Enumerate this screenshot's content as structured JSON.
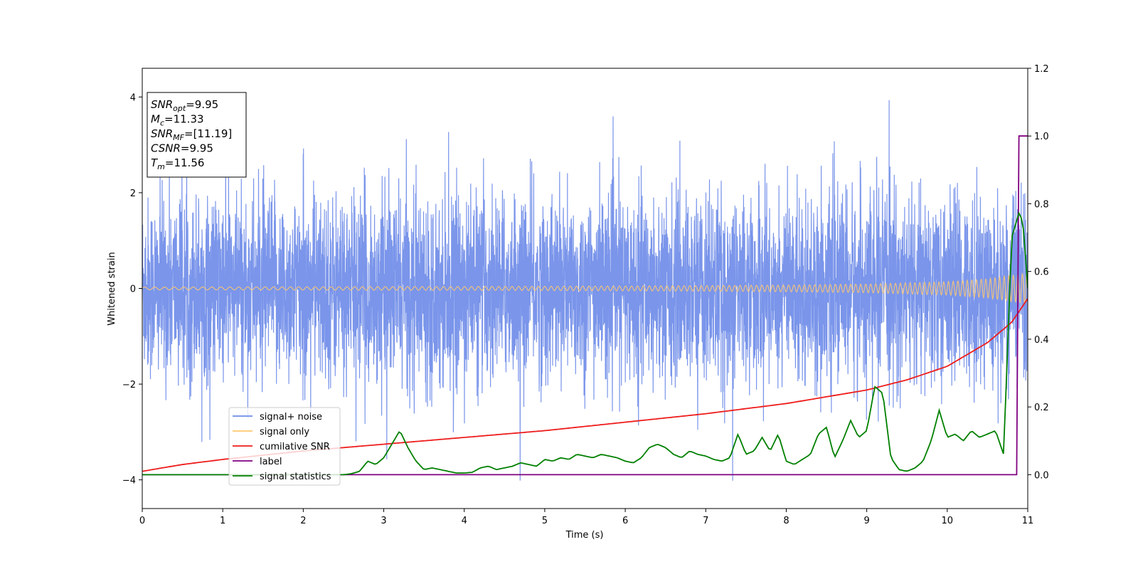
{
  "chart_data": {
    "type": "line",
    "xlabel": "Time (s)",
    "ylabel": "Whitened strain",
    "xlim": [
      0,
      11
    ],
    "ylim": [
      -4.6,
      4.6
    ],
    "y2lim": [
      -0.1,
      1.2
    ],
    "xticks": [
      0,
      1,
      2,
      3,
      4,
      5,
      6,
      7,
      8,
      9,
      10,
      11
    ],
    "yticks": [
      -4,
      -2,
      0,
      2,
      4
    ],
    "y2ticks": [
      "0.0",
      "0.2",
      "0.4",
      "0.6",
      "0.8",
      "1.0",
      "1.2"
    ],
    "grid": false,
    "legend_placement": "lower-left",
    "annotation": [
      {
        "base": "SNR",
        "sub": "opt",
        "value": "=9.95"
      },
      {
        "base": "M",
        "sub": "c",
        "value": "=11.33"
      },
      {
        "base": "SNR",
        "sub": "MF",
        "value": "=[11.19]"
      },
      {
        "base": "CSNR",
        "sub": "",
        "value": "=9.95"
      },
      {
        "base": "T",
        "sub": "m",
        "value": "=11.56"
      }
    ],
    "series": [
      {
        "name": "signal+ noise",
        "color": "#6f8ce8",
        "axis": "left",
        "description_values": {
          "std": 1.0,
          "range": [
            -4.2,
            4.1
          ]
        }
      },
      {
        "name": "signal only",
        "color": "#ffc870",
        "axis": "left",
        "envelope": {
          "x": [
            0,
            2,
            4,
            6,
            8,
            9,
            10,
            10.5,
            11
          ],
          "amp": [
            0.03,
            0.035,
            0.04,
            0.05,
            0.07,
            0.09,
            0.14,
            0.2,
            0.33
          ]
        }
      },
      {
        "name": "cumilative SNR",
        "color": "#ee1c1c",
        "axis": "right",
        "x": [
          0,
          0.5,
          1,
          2,
          3,
          4,
          5,
          6,
          7,
          8,
          9,
          9.5,
          10,
          10.5,
          10.8,
          11
        ],
        "y": [
          0.01,
          0.03,
          0.045,
          0.07,
          0.09,
          0.11,
          0.13,
          0.155,
          0.18,
          0.21,
          0.25,
          0.28,
          0.32,
          0.39,
          0.45,
          0.52
        ]
      },
      {
        "name": "label",
        "color": "#800080",
        "axis": "right",
        "x": [
          0,
          10.88,
          10.89,
          11
        ],
        "y": [
          0,
          0,
          1.0,
          1.0
        ]
      },
      {
        "name": "signal statistics",
        "color": "#008000",
        "axis": "right",
        "x": [
          0,
          0.5,
          1,
          1.5,
          2,
          2.5,
          2.6,
          2.7,
          2.8,
          2.9,
          3.0,
          3.1,
          3.2,
          3.3,
          3.4,
          3.5,
          3.6,
          3.7,
          3.8,
          3.9,
          4.0,
          4.1,
          4.2,
          4.3,
          4.4,
          4.5,
          4.6,
          4.7,
          4.8,
          4.9,
          5.0,
          5.1,
          5.2,
          5.3,
          5.4,
          5.5,
          5.6,
          5.7,
          5.8,
          5.9,
          6.0,
          6.1,
          6.2,
          6.3,
          6.4,
          6.5,
          6.6,
          6.7,
          6.8,
          6.9,
          7.0,
          7.1,
          7.2,
          7.3,
          7.4,
          7.5,
          7.6,
          7.7,
          7.8,
          7.9,
          8.0,
          8.1,
          8.2,
          8.3,
          8.4,
          8.5,
          8.6,
          8.7,
          8.8,
          8.9,
          9.0,
          9.1,
          9.2,
          9.3,
          9.4,
          9.5,
          9.6,
          9.7,
          9.8,
          9.9,
          10.0,
          10.1,
          10.2,
          10.3,
          10.4,
          10.5,
          10.6,
          10.7,
          10.8,
          10.9,
          10.95,
          11.0
        ],
        "y": [
          0,
          0,
          0,
          0,
          0,
          0,
          0.003,
          0.01,
          0.04,
          0.03,
          0.05,
          0.09,
          0.13,
          0.08,
          0.04,
          0.015,
          0.02,
          0.015,
          0.01,
          0.005,
          0.005,
          0.007,
          0.02,
          0.025,
          0.015,
          0.02,
          0.025,
          0.035,
          0.03,
          0.025,
          0.045,
          0.04,
          0.05,
          0.045,
          0.06,
          0.055,
          0.05,
          0.06,
          0.055,
          0.05,
          0.04,
          0.035,
          0.05,
          0.08,
          0.09,
          0.08,
          0.06,
          0.05,
          0.07,
          0.06,
          0.055,
          0.045,
          0.04,
          0.05,
          0.12,
          0.06,
          0.07,
          0.11,
          0.07,
          0.12,
          0.04,
          0.03,
          0.045,
          0.06,
          0.12,
          0.14,
          0.05,
          0.1,
          0.16,
          0.11,
          0.13,
          0.26,
          0.24,
          0.05,
          0.015,
          0.01,
          0.02,
          0.04,
          0.1,
          0.19,
          0.11,
          0.12,
          0.1,
          0.13,
          0.11,
          0.12,
          0.13,
          0.06,
          0.7,
          0.78,
          0.72,
          0.55
        ]
      }
    ]
  }
}
